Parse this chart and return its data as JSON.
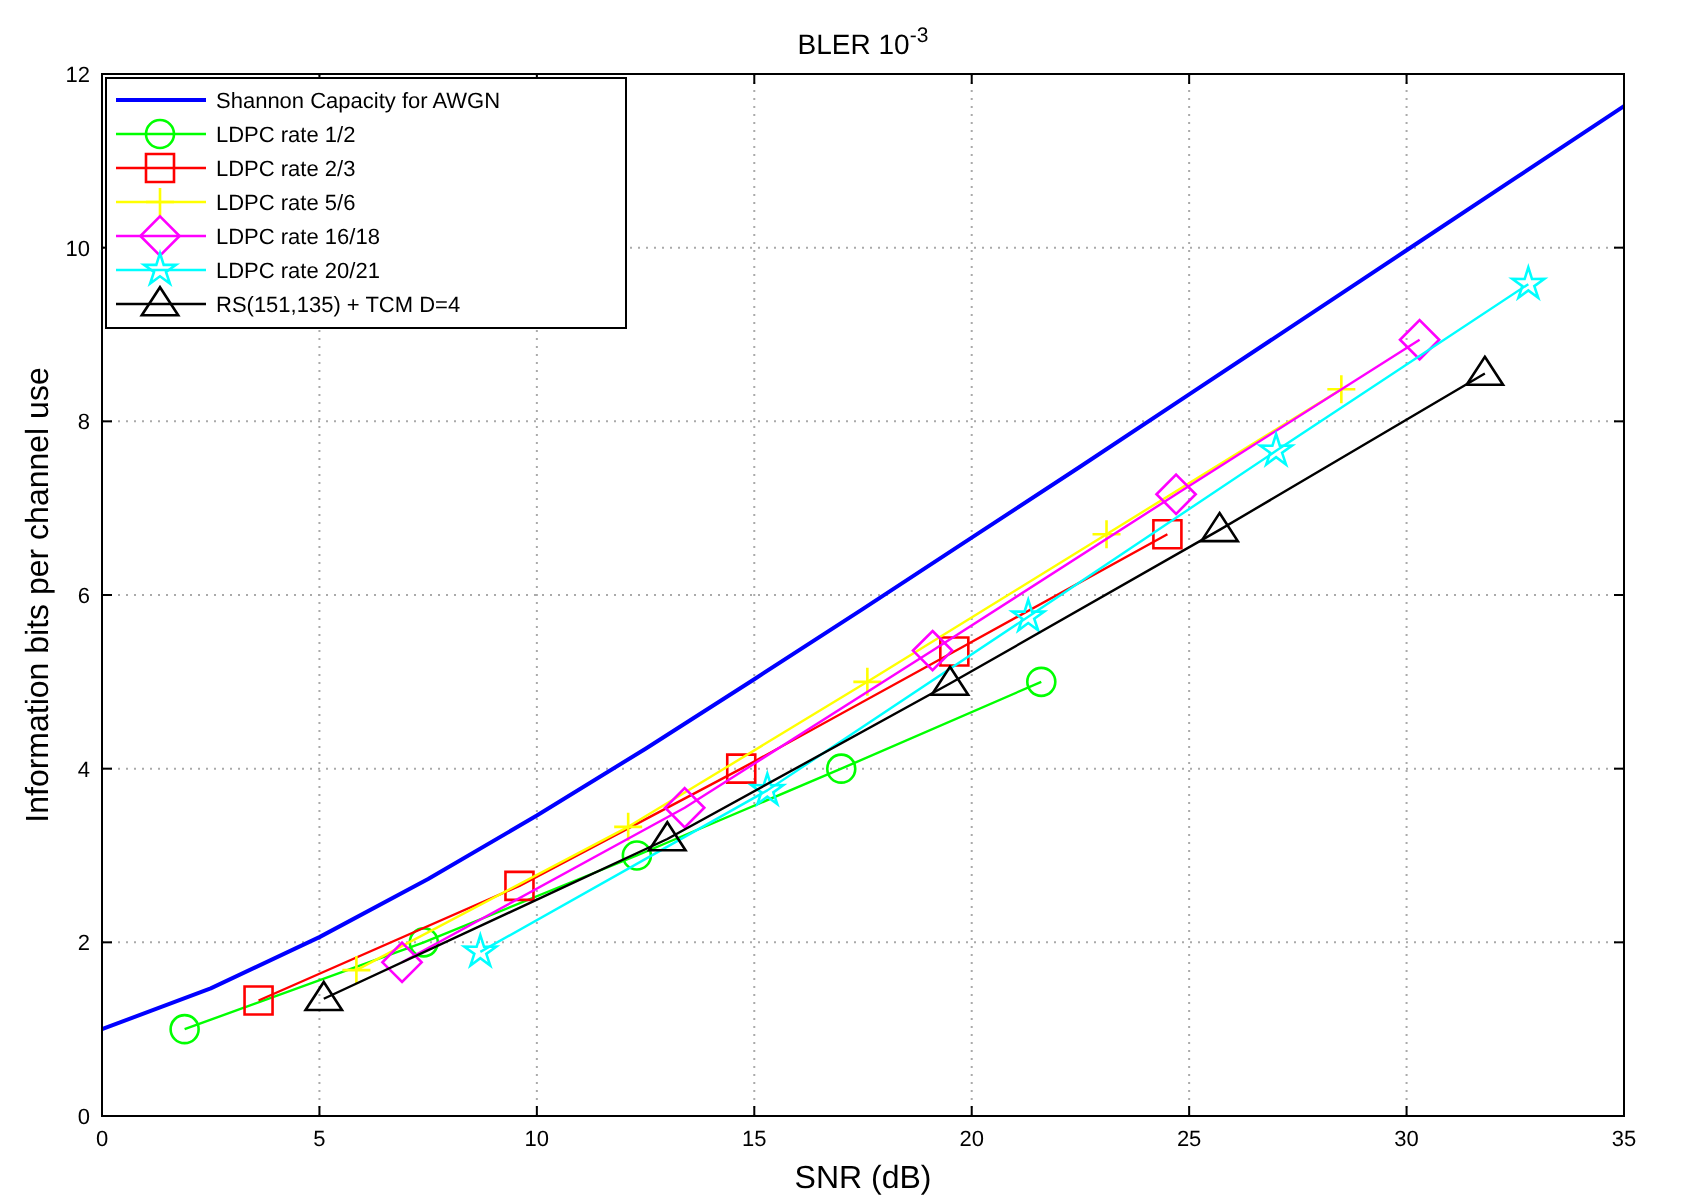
{
  "chart_data": {
    "type": "line",
    "title": "BLER 10$^{-3}$",
    "xlabel": "SNR (dB)",
    "ylabel": "Information bits per channel use",
    "xlim": [
      0,
      35
    ],
    "ylim": [
      0,
      12
    ],
    "xticks": [
      0,
      5,
      10,
      15,
      20,
      25,
      30,
      35
    ],
    "yticks": [
      0,
      2,
      4,
      6,
      8,
      10,
      12
    ],
    "grid": true,
    "legend": "top left",
    "line_style": "solid",
    "series": [
      {
        "name": "Shannon Capacity for AWGN",
        "color": "#0000ff",
        "marker": "none",
        "x": [
          0,
          2.5,
          5,
          7.5,
          10,
          12.5,
          15,
          17.5,
          20,
          22.5,
          25,
          27.5,
          30,
          32.5,
          35
        ],
        "values": [
          1.0,
          1.47,
          2.06,
          2.73,
          3.46,
          4.23,
          5.03,
          5.84,
          6.66,
          7.48,
          8.31,
          9.14,
          9.97,
          10.8,
          11.63
        ]
      },
      {
        "name": "LDPC rate 1/2",
        "color": "#00ff00",
        "marker": "circle",
        "x": [
          1.9,
          7.4,
          12.3,
          17.0,
          21.6
        ],
        "values": [
          1,
          2,
          3,
          4,
          5
        ]
      },
      {
        "name": "LDPC rate 2/3",
        "color": "#ff0000",
        "marker": "square",
        "x": [
          3.6,
          9.6,
          14.7,
          19.6,
          24.5
        ],
        "values": [
          1.33,
          2.65,
          4.0,
          5.35,
          6.7
        ]
      },
      {
        "name": "LDPC rate 5/6",
        "color": "#ffff00",
        "marker": "plus",
        "x": [
          5.85,
          12.1,
          17.6,
          23.1,
          28.5
        ],
        "values": [
          1.68,
          3.33,
          5.0,
          6.7,
          8.37
        ]
      },
      {
        "name": "LDPC rate 16/18",
        "color": "#ff00ff",
        "marker": "diamond",
        "x": [
          6.9,
          13.4,
          19.1,
          24.7,
          30.3
        ],
        "values": [
          1.77,
          3.55,
          5.36,
          7.16,
          8.94
        ]
      },
      {
        "name": "LDPC rate 20/21",
        "color": "#00ffff",
        "marker": "star",
        "x": [
          8.7,
          15.3,
          21.3,
          27.0,
          32.8
        ],
        "values": [
          1.89,
          3.75,
          5.75,
          7.66,
          9.58
        ]
      },
      {
        "name": "RS(151,135) + TCM D=4",
        "color": "#000000",
        "marker": "triangle",
        "x": [
          5.1,
          13.0,
          19.5,
          25.7,
          31.8
        ],
        "values": [
          1.35,
          3.19,
          4.98,
          6.75,
          8.55
        ]
      }
    ]
  }
}
